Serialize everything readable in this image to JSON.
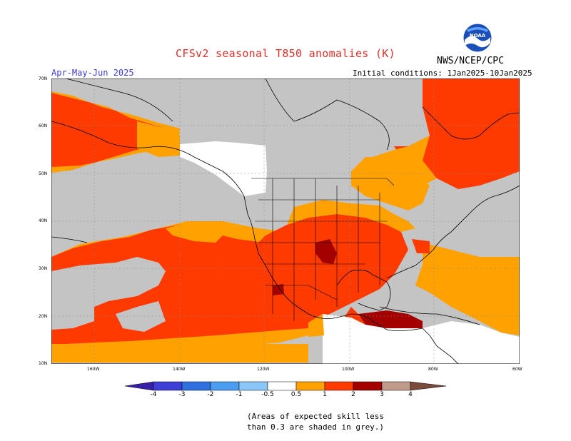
{
  "title": "CFSv2 seasonal T850 anomalies (K)",
  "agency": "NWS/NCEP/CPC",
  "logo_text": "NOAA",
  "season": "Apr-May-Jun 2025",
  "initial_conditions": "Initial conditions: 1Jan2025-10Jan2025",
  "map": {
    "lat_labels": [
      "70N",
      "60N",
      "50N",
      "40N",
      "30N",
      "20N",
      "10N"
    ],
    "lon_labels": [
      "160W",
      "140W",
      "120W",
      "100W",
      "80W",
      "60W"
    ],
    "colors": {
      "ocean_low_skill": "#c4c4c4",
      "land_low_skill": "#c4c4c4",
      "near_zero": "#ffffff",
      "pos_0_5_1": "#ffa100",
      "pos_1_2": "#ff3a00",
      "pos_2_3": "#a50000",
      "coastline": "#000000"
    }
  },
  "colorbar": {
    "labels": [
      "-4",
      "-3",
      "-2",
      "-1",
      "-0.5",
      "0.5",
      "1",
      "2",
      "3",
      "4"
    ],
    "colors": [
      "#3a1fa8",
      "#3f3fd8",
      "#2f6fe0",
      "#4c9cf0",
      "#8ac6f8",
      "#ffffff",
      "#ffa100",
      "#ff3a00",
      "#a50000",
      "#c09a8a",
      "#7a4a3a"
    ]
  },
  "note_lines": [
    "(Areas of expected skill less",
    "than 0.3 are shaded in grey.)"
  ]
}
